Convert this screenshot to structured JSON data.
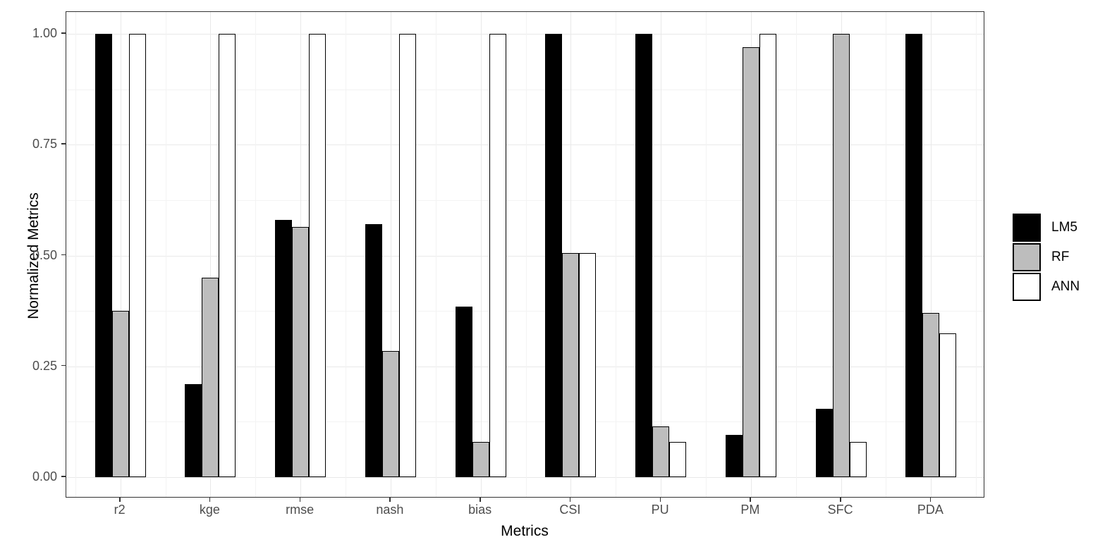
{
  "chart_data": {
    "type": "bar",
    "title": "",
    "xlabel": "Metrics",
    "ylabel": "Normalized Metrics",
    "categories": [
      "r2",
      "kge",
      "rmse",
      "nash",
      "bias",
      "CSI",
      "PU",
      "PM",
      "SFC",
      "PDA"
    ],
    "series": [
      {
        "name": "LM5",
        "color": "#000000",
        "values": [
          1.0,
          0.21,
          0.58,
          0.57,
          0.385,
          1.0,
          1.0,
          0.095,
          0.155,
          1.0
        ]
      },
      {
        "name": "RF",
        "color": "#bdbdbd",
        "values": [
          0.375,
          0.45,
          0.565,
          0.285,
          0.08,
          0.505,
          0.115,
          0.97,
          1.0,
          0.37
        ]
      },
      {
        "name": "ANN",
        "color": "#ffffff",
        "values": [
          1.0,
          1.0,
          1.0,
          1.0,
          1.0,
          0.505,
          0.08,
          1.0,
          0.08,
          0.325
        ]
      }
    ],
    "ylim": [
      0,
      1
    ],
    "yticks": [
      {
        "value": 0.0,
        "label": "0.00"
      },
      {
        "value": 0.25,
        "label": "0.25"
      },
      {
        "value": 0.5,
        "label": "0.50"
      },
      {
        "value": 0.75,
        "label": "0.75"
      },
      {
        "value": 1.0,
        "label": "1.00"
      }
    ],
    "minor_grid_step": 0.125,
    "grid": true,
    "legend_position": "right",
    "panel_border_color": "#333333",
    "grid_major_color": "#e9e9e9",
    "grid_minor_color": "#f3f3f3",
    "tick_label_color": "#4d4d4d"
  }
}
